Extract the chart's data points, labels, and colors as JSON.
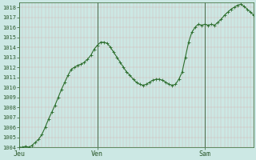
{
  "background_color": "#cce8e4",
  "line_color": "#2d6e2d",
  "marker_color": "#2d6e2d",
  "axis_color": "#4a7a4a",
  "tick_label_color": "#2d5a2d",
  "grid_v_color": "#d4a0a0",
  "grid_h_color": "#d4a0a0",
  "sep_color": "#4a6a4a",
  "ylim": [
    1004,
    1018.5
  ],
  "yticks": [
    1004,
    1005,
    1006,
    1007,
    1008,
    1009,
    1010,
    1011,
    1012,
    1013,
    1014,
    1015,
    1016,
    1017,
    1018
  ],
  "xtick_labels": [
    "Jeu",
    "Ven",
    "Sam"
  ],
  "xtick_positions": [
    0,
    24,
    57
  ],
  "total_points": 73,
  "total_hours": 72,
  "pressure_values": [
    1004.0,
    1004.0,
    1004.1,
    1004.0,
    1004.2,
    1004.5,
    1004.8,
    1005.3,
    1006.0,
    1006.8,
    1007.5,
    1008.2,
    1009.0,
    1009.8,
    1010.5,
    1011.2,
    1011.8,
    1012.0,
    1012.2,
    1012.3,
    1012.5,
    1012.8,
    1013.2,
    1013.8,
    1014.2,
    1014.5,
    1014.5,
    1014.4,
    1014.0,
    1013.5,
    1013.0,
    1012.5,
    1012.0,
    1011.5,
    1011.2,
    1010.8,
    1010.5,
    1010.3,
    1010.2,
    1010.3,
    1010.5,
    1010.7,
    1010.8,
    1010.8,
    1010.7,
    1010.5,
    1010.3,
    1010.2,
    1010.3,
    1010.8,
    1011.5,
    1013.0,
    1014.5,
    1015.5,
    1016.0,
    1016.3,
    1016.2,
    1016.3,
    1016.2,
    1016.3,
    1016.2,
    1016.5,
    1016.8,
    1017.2,
    1017.5,
    1017.8,
    1018.0,
    1018.2,
    1018.3,
    1018.1,
    1017.8,
    1017.5,
    1017.2
  ]
}
